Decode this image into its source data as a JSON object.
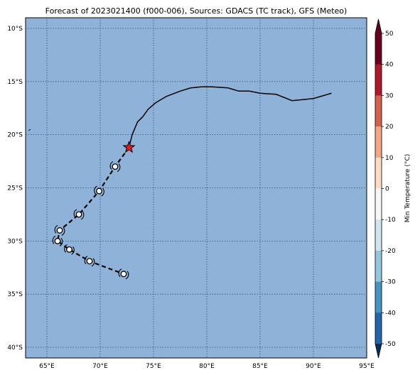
{
  "title": "Forecast of 2023021400 (f000-006), Sources: GDACS (TC track), GFS (Meteo)",
  "colorbar": {
    "label": "Min Temperature (°C)",
    "ticks": [
      "50",
      "40",
      "30",
      "20",
      "10",
      "0",
      "-10",
      "-20",
      "-30",
      "-40",
      "-50"
    ],
    "colors": [
      "#67001f",
      "#b2182b",
      "#d6604d",
      "#f4a582",
      "#fddbc7",
      "#f7f7f7",
      "#d1e5f0",
      "#92c5de",
      "#4393c3",
      "#2166ac",
      "#053061"
    ]
  },
  "map": {
    "ocean_color": "#8fb3d8",
    "lon_range": [
      63,
      95
    ],
    "lat_range": [
      -41,
      -9
    ],
    "x_ticks": [
      "65°E",
      "70°E",
      "75°E",
      "80°E",
      "85°E",
      "90°E",
      "95°E"
    ],
    "y_ticks": [
      "10°S",
      "15°S",
      "20°S",
      "25°S",
      "30°S",
      "35°S",
      "40°S"
    ],
    "gridlines": true
  },
  "track": {
    "current_position": {
      "lon": 72.7,
      "lat": -21.2,
      "marker": "star-icon",
      "color": "#e41a1c"
    },
    "past_track": [
      [
        72.7,
        -21.2
      ],
      [
        73.0,
        -20.0
      ],
      [
        73.5,
        -18.8
      ],
      [
        74.0,
        -18.3
      ],
      [
        74.5,
        -17.6
      ],
      [
        75.2,
        -17.0
      ],
      [
        76.2,
        -16.4
      ],
      [
        77.5,
        -15.9
      ],
      [
        78.5,
        -15.6
      ],
      [
        79.5,
        -15.5
      ],
      [
        80.5,
        -15.5
      ],
      [
        82.0,
        -15.6
      ],
      [
        83.0,
        -15.9
      ],
      [
        84.0,
        -15.9
      ],
      [
        85.0,
        -16.1
      ],
      [
        86.5,
        -16.2
      ],
      [
        88.0,
        -16.8
      ],
      [
        89.0,
        -16.7
      ],
      [
        90.0,
        -16.6
      ],
      [
        91.7,
        -16.1
      ]
    ],
    "forecast_points": [
      [
        71.4,
        -23.0
      ],
      [
        69.9,
        -25.3
      ],
      [
        68.0,
        -27.5
      ],
      [
        66.2,
        -29.0
      ],
      [
        66.0,
        -30.0
      ],
      [
        67.1,
        -30.8
      ],
      [
        69.0,
        -31.9
      ],
      [
        72.2,
        -33.1
      ]
    ],
    "forecast_symbol": "cyclone-symbol-icon"
  }
}
